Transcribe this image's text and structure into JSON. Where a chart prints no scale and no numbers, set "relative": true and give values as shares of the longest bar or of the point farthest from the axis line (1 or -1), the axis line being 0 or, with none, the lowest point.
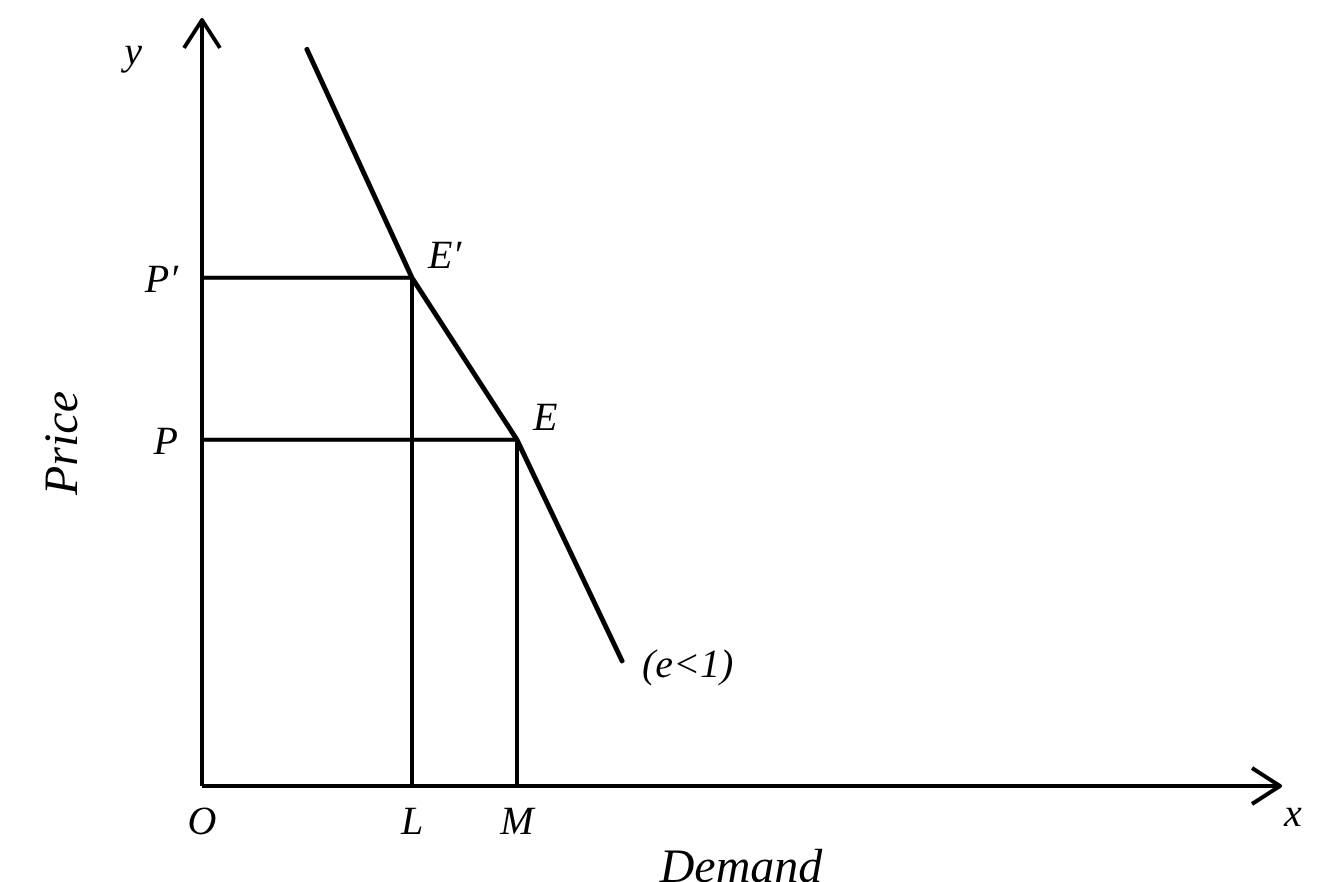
{
  "chart_data": {
    "type": "line",
    "relative": true,
    "xlabel": "Demand",
    "ylabel": "Price",
    "categories": [
      "O",
      null,
      "L",
      "M",
      null
    ],
    "series": [
      {
        "name": "(e<1)",
        "color": "#000000",
        "values": [
          null,
          1,
          0.69,
          0.47,
          0.17
        ]
      }
    ],
    "ref_lines": [
      {
        "axis": "y",
        "value": 0.69,
        "label": "P′"
      },
      {
        "axis": "y",
        "value": 0.47,
        "label": "P"
      },
      {
        "axis": "x",
        "value": "L"
      },
      {
        "axis": "x",
        "value": "M"
      }
    ],
    "annotations": [
      "y",
      "x",
      {
        "text": "E′",
        "x": "L",
        "y": 0.69
      },
      {
        "text": "E",
        "x": "M",
        "y": 0.47
      }
    ]
  }
}
